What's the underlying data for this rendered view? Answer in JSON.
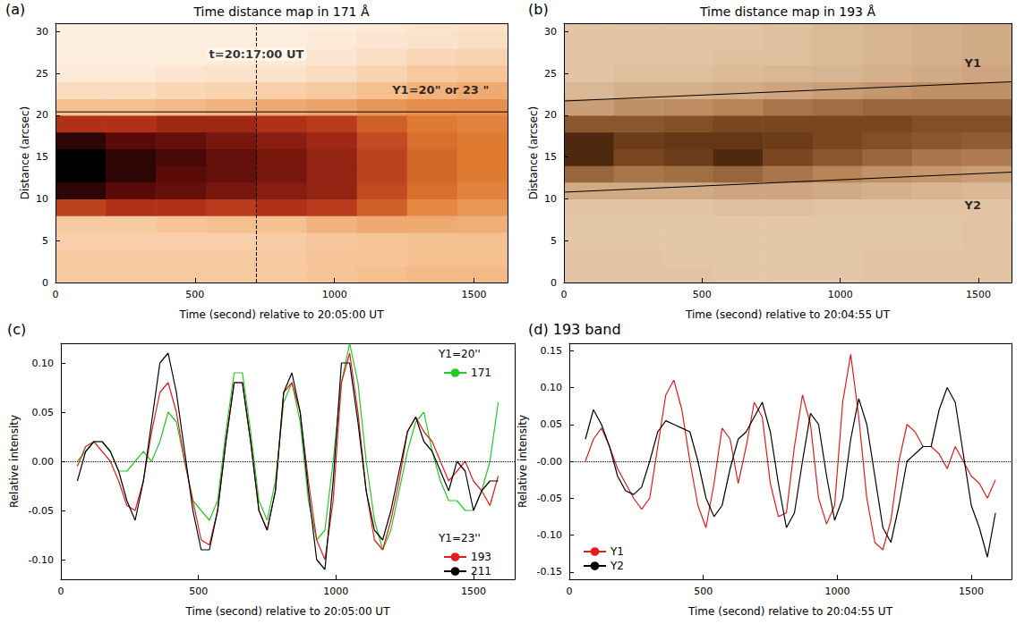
{
  "chart_data": [
    {
      "type": "heatmap",
      "panel": "(a)",
      "title": "Time distance map in 171 Å",
      "x_label": "Time (second) relative to 20:05:00 UT",
      "y_label": "Distance (arcsec)",
      "xlim": [
        0,
        1620
      ],
      "ylim": [
        0,
        31
      ],
      "xticks": [
        0,
        500,
        1000,
        1500
      ],
      "yticks": [
        0,
        5,
        10,
        15,
        20,
        25,
        30
      ],
      "x_edges": [
        0,
        180,
        360,
        540,
        720,
        900,
        1080,
        1260,
        1440,
        1620
      ],
      "y_edges": [
        0,
        2,
        4,
        6,
        8,
        10,
        12,
        14,
        16,
        18,
        20,
        22,
        24,
        26,
        28,
        30,
        31
      ],
      "cell_range": [
        0,
        1
      ],
      "cells": [
        [
          0.25,
          0.25,
          0.22,
          0.25,
          0.7,
          0.95,
          1.0,
          1.0,
          0.95,
          0.75,
          0.3,
          0.15,
          0.08,
          0.05,
          0.05,
          0.05
        ],
        [
          0.25,
          0.25,
          0.22,
          0.25,
          0.75,
          0.9,
          0.95,
          0.95,
          0.9,
          0.75,
          0.3,
          0.15,
          0.08,
          0.05,
          0.05,
          0.05
        ],
        [
          0.25,
          0.25,
          0.22,
          0.28,
          0.75,
          0.88,
          0.9,
          0.92,
          0.88,
          0.78,
          0.32,
          0.18,
          0.1,
          0.06,
          0.05,
          0.05
        ],
        [
          0.25,
          0.25,
          0.22,
          0.3,
          0.72,
          0.85,
          0.88,
          0.88,
          0.85,
          0.78,
          0.35,
          0.2,
          0.12,
          0.08,
          0.06,
          0.05
        ],
        [
          0.25,
          0.25,
          0.24,
          0.3,
          0.75,
          0.82,
          0.85,
          0.85,
          0.82,
          0.75,
          0.38,
          0.22,
          0.12,
          0.08,
          0.06,
          0.05
        ],
        [
          0.28,
          0.28,
          0.26,
          0.35,
          0.72,
          0.8,
          0.8,
          0.8,
          0.78,
          0.72,
          0.4,
          0.25,
          0.15,
          0.1,
          0.08,
          0.06
        ],
        [
          0.3,
          0.28,
          0.28,
          0.38,
          0.62,
          0.68,
          0.7,
          0.7,
          0.68,
          0.62,
          0.45,
          0.3,
          0.2,
          0.14,
          0.1,
          0.08
        ],
        [
          0.32,
          0.3,
          0.3,
          0.38,
          0.5,
          0.58,
          0.6,
          0.6,
          0.58,
          0.55,
          0.48,
          0.35,
          0.25,
          0.18,
          0.12,
          0.1
        ],
        [
          0.32,
          0.3,
          0.3,
          0.36,
          0.45,
          0.52,
          0.55,
          0.55,
          0.55,
          0.52,
          0.48,
          0.38,
          0.28,
          0.2,
          0.14,
          0.12
        ]
      ],
      "annotations": [
        {
          "type": "line",
          "line_style": "dashed",
          "points": [
            [
              720,
              0
            ],
            [
              720,
              31
            ]
          ]
        },
        {
          "type": "line",
          "line_style": "solid",
          "points": [
            [
              0,
              20.4
            ],
            [
              1620,
              20.4
            ]
          ]
        },
        {
          "type": "text",
          "text": "t=20:17:00 UT",
          "x": 720,
          "y": 27.3
        },
        {
          "type": "text",
          "text": "Y1=20\" or 23 \"",
          "x": 1380,
          "y": 23
        }
      ]
    },
    {
      "type": "heatmap",
      "panel": "(b)",
      "title": "Time distance map in 193 Å",
      "x_label": "Time (second) relative to 20:04:55 UT",
      "y_label": "Distance (arcsec)",
      "xlim": [
        0,
        1620
      ],
      "ylim": [
        0,
        31
      ],
      "xticks": [
        0,
        500,
        1000,
        1500
      ],
      "yticks": [
        0,
        5,
        10,
        15,
        20,
        25,
        30
      ],
      "x_edges": [
        0,
        180,
        360,
        540,
        720,
        900,
        1080,
        1260,
        1440,
        1620
      ],
      "y_edges": [
        0,
        2,
        4,
        6,
        8,
        10,
        12,
        14,
        16,
        18,
        20,
        22,
        24,
        26,
        28,
        30,
        31
      ],
      "cell_range": [
        0,
        1
      ],
      "cells": [
        [
          0.3,
          0.3,
          0.28,
          0.28,
          0.3,
          0.4,
          0.65,
          0.85,
          0.85,
          0.7,
          0.45,
          0.35,
          0.3,
          0.3,
          0.3,
          0.3
        ],
        [
          0.3,
          0.3,
          0.28,
          0.28,
          0.3,
          0.4,
          0.6,
          0.75,
          0.78,
          0.7,
          0.5,
          0.38,
          0.32,
          0.3,
          0.3,
          0.3
        ],
        [
          0.3,
          0.28,
          0.28,
          0.28,
          0.3,
          0.4,
          0.62,
          0.78,
          0.8,
          0.72,
          0.52,
          0.38,
          0.32,
          0.3,
          0.3,
          0.3
        ],
        [
          0.28,
          0.28,
          0.28,
          0.28,
          0.32,
          0.42,
          0.65,
          0.85,
          0.8,
          0.75,
          0.55,
          0.4,
          0.34,
          0.32,
          0.3,
          0.3
        ],
        [
          0.28,
          0.28,
          0.28,
          0.28,
          0.32,
          0.42,
          0.6,
          0.75,
          0.78,
          0.75,
          0.6,
          0.42,
          0.35,
          0.32,
          0.32,
          0.32
        ],
        [
          0.28,
          0.28,
          0.28,
          0.28,
          0.3,
          0.4,
          0.55,
          0.7,
          0.75,
          0.75,
          0.62,
          0.45,
          0.36,
          0.34,
          0.34,
          0.34
        ],
        [
          0.3,
          0.3,
          0.28,
          0.28,
          0.3,
          0.38,
          0.5,
          0.65,
          0.72,
          0.75,
          0.65,
          0.48,
          0.38,
          0.36,
          0.36,
          0.36
        ],
        [
          0.3,
          0.3,
          0.28,
          0.28,
          0.3,
          0.36,
          0.48,
          0.6,
          0.7,
          0.72,
          0.65,
          0.5,
          0.4,
          0.38,
          0.38,
          0.38
        ],
        [
          0.3,
          0.3,
          0.3,
          0.3,
          0.3,
          0.35,
          0.45,
          0.58,
          0.68,
          0.72,
          0.65,
          0.5,
          0.42,
          0.4,
          0.4,
          0.4
        ]
      ],
      "annotations": [
        {
          "type": "line",
          "line_style": "solid",
          "points": [
            [
              0,
              21.7
            ],
            [
              1620,
              24
            ]
          ]
        },
        {
          "type": "line",
          "line_style": "solid",
          "points": [
            [
              0,
              10.8
            ],
            [
              1620,
              13.2
            ]
          ]
        },
        {
          "type": "text",
          "text": "Y1",
          "x": 1480,
          "y": 26.2
        },
        {
          "type": "text",
          "text": "Y2",
          "x": 1480,
          "y": 9.3
        }
      ]
    },
    {
      "type": "line",
      "panel": "(c)",
      "x_label": "Time (second) relative to 20:05:00 UT",
      "y_label": "Relative intensity",
      "xlim": [
        0,
        1650
      ],
      "ylim": [
        -0.12,
        0.12
      ],
      "xticks": [
        0,
        500,
        1000,
        1500
      ],
      "yticks": [
        {
          "value": -0.1,
          "label": "-0.10"
        },
        {
          "value": -0.05,
          "label": "-0.05"
        },
        {
          "value": 0,
          "label": "0.00"
        },
        {
          "value": 0.05,
          "label": "0.05"
        },
        {
          "value": 0.1,
          "label": "0.10"
        }
      ],
      "legend": "right",
      "legend_groups": [
        {
          "title": "Y1=20''",
          "entries": [
            "171"
          ]
        },
        {
          "title": "Y1=23''",
          "entries": [
            "193",
            "211"
          ]
        }
      ],
      "x": [
        60,
        90,
        120,
        150,
        180,
        210,
        240,
        270,
        300,
        330,
        360,
        390,
        420,
        450,
        480,
        510,
        540,
        570,
        600,
        630,
        660,
        690,
        720,
        750,
        780,
        810,
        840,
        870,
        900,
        930,
        960,
        990,
        1020,
        1050,
        1080,
        1110,
        1140,
        1170,
        1200,
        1230,
        1260,
        1290,
        1320,
        1350,
        1380,
        1410,
        1440,
        1470,
        1500,
        1530,
        1560,
        1590
      ],
      "series": [
        {
          "name": "171",
          "color": "#22cc22",
          "values": [
            0.0,
            0.01,
            0.02,
            0.02,
            0.01,
            -0.01,
            -0.01,
            0.0,
            0.01,
            0.0,
            0.02,
            0.05,
            0.04,
            0.0,
            -0.04,
            -0.05,
            -0.06,
            -0.04,
            0.03,
            0.09,
            0.09,
            0.03,
            -0.04,
            -0.06,
            -0.02,
            0.06,
            0.08,
            0.04,
            -0.04,
            -0.08,
            -0.07,
            0.0,
            0.08,
            0.12,
            0.08,
            0.0,
            -0.06,
            -0.09,
            -0.07,
            -0.03,
            0.01,
            0.04,
            0.05,
            0.01,
            -0.02,
            -0.04,
            -0.04,
            -0.05,
            -0.05,
            -0.03,
            0.0,
            0.06
          ]
        },
        {
          "name": "193",
          "color": "#e41a1c",
          "values": [
            -0.005,
            0.015,
            0.02,
            0.01,
            0.0,
            -0.02,
            -0.045,
            -0.05,
            -0.02,
            0.03,
            0.07,
            0.08,
            0.05,
            0.0,
            -0.04,
            -0.08,
            -0.085,
            -0.05,
            0.02,
            0.08,
            0.08,
            0.02,
            -0.05,
            -0.07,
            -0.03,
            0.07,
            0.08,
            0.05,
            -0.02,
            -0.08,
            -0.1,
            -0.04,
            0.08,
            0.11,
            0.05,
            -0.03,
            -0.08,
            -0.09,
            -0.06,
            -0.02,
            0.03,
            0.045,
            0.03,
            0.02,
            0.0,
            -0.02,
            -0.01,
            0.0,
            -0.02,
            -0.03,
            -0.045,
            -0.015
          ]
        },
        {
          "name": "211",
          "color": "#000000",
          "values": [
            -0.02,
            0.01,
            0.02,
            0.02,
            0.01,
            -0.01,
            -0.04,
            -0.06,
            -0.02,
            0.04,
            0.1,
            0.11,
            0.07,
            0.01,
            -0.05,
            -0.09,
            -0.09,
            -0.05,
            0.02,
            0.08,
            0.08,
            0.02,
            -0.05,
            -0.07,
            -0.03,
            0.07,
            0.09,
            0.05,
            -0.03,
            -0.1,
            -0.11,
            -0.02,
            0.1,
            0.1,
            0.04,
            -0.03,
            -0.07,
            -0.08,
            -0.05,
            -0.01,
            0.03,
            0.045,
            0.02,
            0.01,
            -0.01,
            -0.03,
            0.0,
            -0.01,
            -0.05,
            -0.03,
            -0.02,
            -0.02
          ]
        }
      ]
    },
    {
      "type": "line",
      "panel": "(d) 193 band",
      "x_label": "Time (second) relative to 20:04:55 UT",
      "y_label": "Relative intensity",
      "xlim": [
        0,
        1650
      ],
      "ylim": [
        -0.16,
        0.16
      ],
      "xticks": [
        0,
        500,
        1000,
        1500
      ],
      "yticks": [
        {
          "value": -0.15,
          "label": "-0.15"
        },
        {
          "value": -0.1,
          "label": "-0.10"
        },
        {
          "value": -0.05,
          "label": "-0.05"
        },
        {
          "value": 0,
          "label": "-0.00"
        },
        {
          "value": 0.05,
          "label": "0.05"
        },
        {
          "value": 0.1,
          "label": "0.10"
        },
        {
          "value": 0.15,
          "label": "0.15"
        }
      ],
      "legend": "lower left",
      "x": [
        60,
        90,
        120,
        150,
        180,
        210,
        240,
        270,
        300,
        330,
        360,
        390,
        420,
        450,
        480,
        510,
        540,
        570,
        600,
        630,
        660,
        690,
        720,
        750,
        780,
        810,
        840,
        870,
        900,
        930,
        960,
        990,
        1020,
        1050,
        1080,
        1110,
        1140,
        1170,
        1200,
        1230,
        1260,
        1290,
        1320,
        1350,
        1380,
        1410,
        1440,
        1470,
        1500,
        1530,
        1560,
        1590
      ],
      "series": [
        {
          "name": "Y1",
          "color": "#e41a1c",
          "values": [
            0.0,
            0.03,
            0.045,
            0.02,
            -0.01,
            -0.03,
            -0.05,
            -0.065,
            -0.05,
            0.02,
            0.09,
            0.11,
            0.07,
            0.0,
            -0.06,
            -0.09,
            -0.03,
            0.045,
            0.03,
            -0.03,
            0.02,
            0.08,
            0.06,
            -0.03,
            -0.075,
            -0.07,
            0.02,
            0.09,
            0.05,
            -0.05,
            -0.085,
            -0.06,
            0.08,
            0.145,
            0.06,
            -0.05,
            -0.11,
            -0.12,
            -0.08,
            0.0,
            0.05,
            0.04,
            0.02,
            0.02,
            0.01,
            -0.01,
            0.02,
            0.0,
            -0.02,
            -0.03,
            -0.05,
            -0.025
          ]
        },
        {
          "name": "Y2",
          "color": "#000000",
          "values": [
            0.03,
            0.07,
            0.05,
            0.02,
            -0.02,
            -0.04,
            -0.045,
            -0.035,
            0.0,
            0.04,
            0.055,
            0.05,
            0.045,
            0.04,
            0.0,
            -0.05,
            -0.075,
            -0.06,
            -0.01,
            0.03,
            0.04,
            0.06,
            0.08,
            0.04,
            -0.03,
            -0.09,
            -0.07,
            0.0,
            0.065,
            0.05,
            -0.02,
            -0.08,
            -0.05,
            0.03,
            0.085,
            0.05,
            -0.02,
            -0.09,
            -0.11,
            -0.06,
            0.0,
            0.01,
            0.02,
            0.02,
            0.07,
            0.1,
            0.08,
            0.01,
            -0.06,
            -0.09,
            -0.13,
            -0.07
          ]
        }
      ]
    }
  ]
}
